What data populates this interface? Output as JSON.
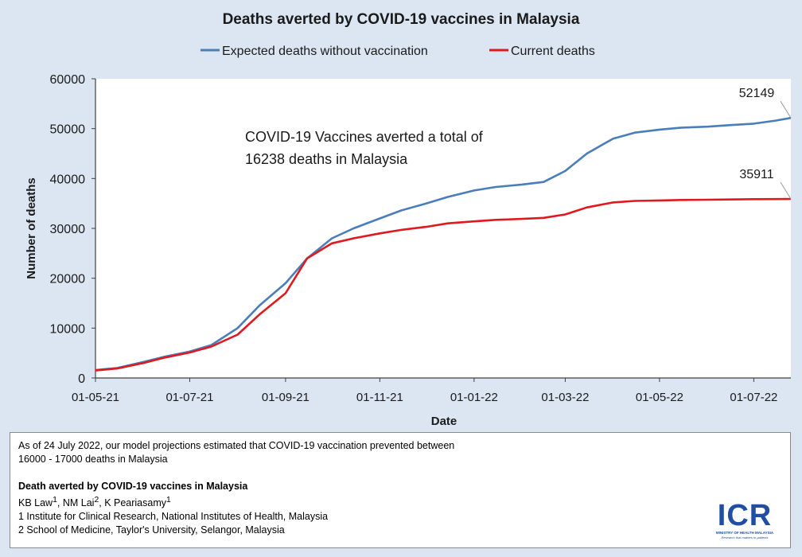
{
  "chart_data": {
    "type": "line",
    "title": "Deaths averted by COVID-19 vaccines in Malaysia",
    "xlabel": "Date",
    "ylabel": "Number of deaths",
    "x_start": "2021-05-01",
    "x_end": "2022-07-25",
    "x_ticks": [
      {
        "label": "01-05-21",
        "date": "2021-05-01"
      },
      {
        "label": "01-07-21",
        "date": "2021-07-01"
      },
      {
        "label": "01-09-21",
        "date": "2021-09-01"
      },
      {
        "label": "01-11-21",
        "date": "2021-11-01"
      },
      {
        "label": "01-01-22",
        "date": "2022-01-01"
      },
      {
        "label": "01-03-22",
        "date": "2022-03-01"
      },
      {
        "label": "01-05-22",
        "date": "2022-05-01"
      },
      {
        "label": "01-07-22",
        "date": "2022-07-01"
      }
    ],
    "y_ticks": [
      "0",
      "10000",
      "20000",
      "30000",
      "40000",
      "50000",
      "60000"
    ],
    "ylim": [
      0,
      60000
    ],
    "grid": false,
    "legend_position": "top",
    "series": [
      {
        "name": "Expected deaths without vaccination",
        "color": "#4a7ebb",
        "points": [
          [
            "2021-05-01",
            1600
          ],
          [
            "2021-05-15",
            2000
          ],
          [
            "2021-06-01",
            3200
          ],
          [
            "2021-06-15",
            4300
          ],
          [
            "2021-07-01",
            5300
          ],
          [
            "2021-07-15",
            6600
          ],
          [
            "2021-08-01",
            10000
          ],
          [
            "2021-08-15",
            14500
          ],
          [
            "2021-09-01",
            19000
          ],
          [
            "2021-09-15",
            24000
          ],
          [
            "2021-10-01",
            28000
          ],
          [
            "2021-10-15",
            30000
          ],
          [
            "2021-11-01",
            32000
          ],
          [
            "2021-11-15",
            33600
          ],
          [
            "2021-12-01",
            35000
          ],
          [
            "2021-12-15",
            36300
          ],
          [
            "2022-01-01",
            37600
          ],
          [
            "2022-01-15",
            38300
          ],
          [
            "2022-02-01",
            38800
          ],
          [
            "2022-02-15",
            39300
          ],
          [
            "2022-03-01",
            41500
          ],
          [
            "2022-03-15",
            45000
          ],
          [
            "2022-04-01",
            48000
          ],
          [
            "2022-04-15",
            49200
          ],
          [
            "2022-05-01",
            49800
          ],
          [
            "2022-05-15",
            50200
          ],
          [
            "2022-06-01",
            50400
          ],
          [
            "2022-06-15",
            50700
          ],
          [
            "2022-07-01",
            51000
          ],
          [
            "2022-07-15",
            51600
          ],
          [
            "2022-07-25",
            52149
          ]
        ]
      },
      {
        "name": "Current deaths",
        "color": "#e0191f",
        "points": [
          [
            "2021-05-01",
            1500
          ],
          [
            "2021-05-15",
            1900
          ],
          [
            "2021-06-01",
            3000
          ],
          [
            "2021-06-15",
            4100
          ],
          [
            "2021-07-01",
            5100
          ],
          [
            "2021-07-15",
            6300
          ],
          [
            "2021-08-01",
            8700
          ],
          [
            "2021-08-15",
            12700
          ],
          [
            "2021-09-01",
            17000
          ],
          [
            "2021-09-15",
            24000
          ],
          [
            "2021-10-01",
            27000
          ],
          [
            "2021-10-15",
            28000
          ],
          [
            "2021-11-01",
            29000
          ],
          [
            "2021-11-15",
            29700
          ],
          [
            "2021-12-01",
            30300
          ],
          [
            "2021-12-15",
            31000
          ],
          [
            "2022-01-01",
            31400
          ],
          [
            "2022-01-15",
            31700
          ],
          [
            "2022-02-01",
            31900
          ],
          [
            "2022-02-15",
            32100
          ],
          [
            "2022-03-01",
            32800
          ],
          [
            "2022-03-15",
            34200
          ],
          [
            "2022-04-01",
            35200
          ],
          [
            "2022-04-15",
            35500
          ],
          [
            "2022-05-01",
            35600
          ],
          [
            "2022-05-15",
            35700
          ],
          [
            "2022-06-01",
            35750
          ],
          [
            "2022-06-15",
            35800
          ],
          [
            "2022-07-01",
            35850
          ],
          [
            "2022-07-15",
            35880
          ],
          [
            "2022-07-25",
            35911
          ]
        ]
      }
    ],
    "annotations": [
      {
        "text": "52149",
        "series": 0,
        "date": "2022-07-25",
        "value": 52149
      },
      {
        "text": "35911",
        "series": 1,
        "date": "2022-07-25",
        "value": 35911
      }
    ],
    "note_lines": [
      "COVID-19 Vaccines averted a total of",
      "16238 deaths in Malaysia"
    ]
  },
  "footer": {
    "line1": "As of 24 July 2022, our model projections estimated that COVID-19 vaccination prevented between",
    "line2": "16000 - 17000 deaths in Malaysia",
    "study_title": "Death averted by COVID-19 vaccines in Malaysia",
    "author1": "KB Law",
    "author1_sup": "1",
    "author2": "NM Lai",
    "author2_sup": "2",
    "author3": "K Peariasamy",
    "author3_sup": "1",
    "affiliation1": "1 Institute for Clinical Research, National Institutes of Health, Malaysia",
    "affiliation2": "2 School of Medicine, Taylor's University, Selangor, Malaysia"
  },
  "logo": {
    "text": "ICR",
    "subtitle": "MINISTRY OF HEALTH MALAYSIA",
    "tagline": "Research that matters to patients"
  }
}
